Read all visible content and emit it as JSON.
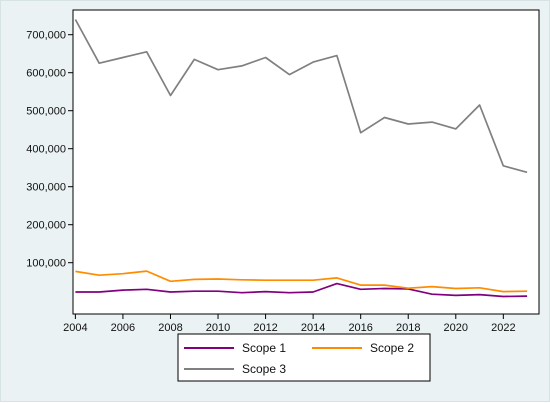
{
  "chart_data": {
    "type": "line",
    "title": "",
    "xlabel": "",
    "ylabel": "",
    "x": [
      2004,
      2005,
      2006,
      2007,
      2008,
      2009,
      2010,
      2011,
      2012,
      2013,
      2014,
      2015,
      2016,
      2017,
      2018,
      2019,
      2020,
      2021,
      2022,
      2023
    ],
    "xticks": [
      2004,
      2006,
      2008,
      2010,
      2012,
      2014,
      2016,
      2018,
      2020,
      2022
    ],
    "xtick_labels": [
      "2004",
      "2006",
      "2008",
      "2010",
      "2012",
      "2014",
      "2016",
      "2018",
      "2020",
      "2022"
    ],
    "xlim": [
      2003.9,
      2023.5
    ],
    "yticks": [
      100000,
      200000,
      300000,
      400000,
      500000,
      600000,
      700000
    ],
    "ytick_labels": [
      "100,000",
      "200,000",
      "300,000",
      "400,000",
      "500,000",
      "600,000",
      "700,000"
    ],
    "ylim": [
      -35000,
      765000
    ],
    "grid": false,
    "legend_position": "bottom",
    "series": [
      {
        "name": "Scope 1",
        "color": "#800080",
        "values": [
          23000,
          23000,
          28000,
          30000,
          23000,
          25000,
          25000,
          21000,
          24000,
          21000,
          23000,
          45000,
          30000,
          32000,
          31000,
          17000,
          14000,
          16000,
          11000,
          12000
        ]
      },
      {
        "name": "Scope 2",
        "color": "#ff8c00",
        "values": [
          77000,
          67000,
          71000,
          78000,
          51000,
          56000,
          57000,
          55000,
          54000,
          54000,
          54000,
          60000,
          41000,
          41000,
          33000,
          37000,
          32000,
          34000,
          24000,
          25000
        ]
      },
      {
        "name": "Scope 3",
        "color": "#808080",
        "values": [
          740000,
          625000,
          640000,
          655000,
          540000,
          635000,
          608000,
          618000,
          640000,
          595000,
          628000,
          645000,
          442000,
          482000,
          465000,
          470000,
          452000,
          515000,
          355000,
          338000
        ]
      }
    ]
  }
}
